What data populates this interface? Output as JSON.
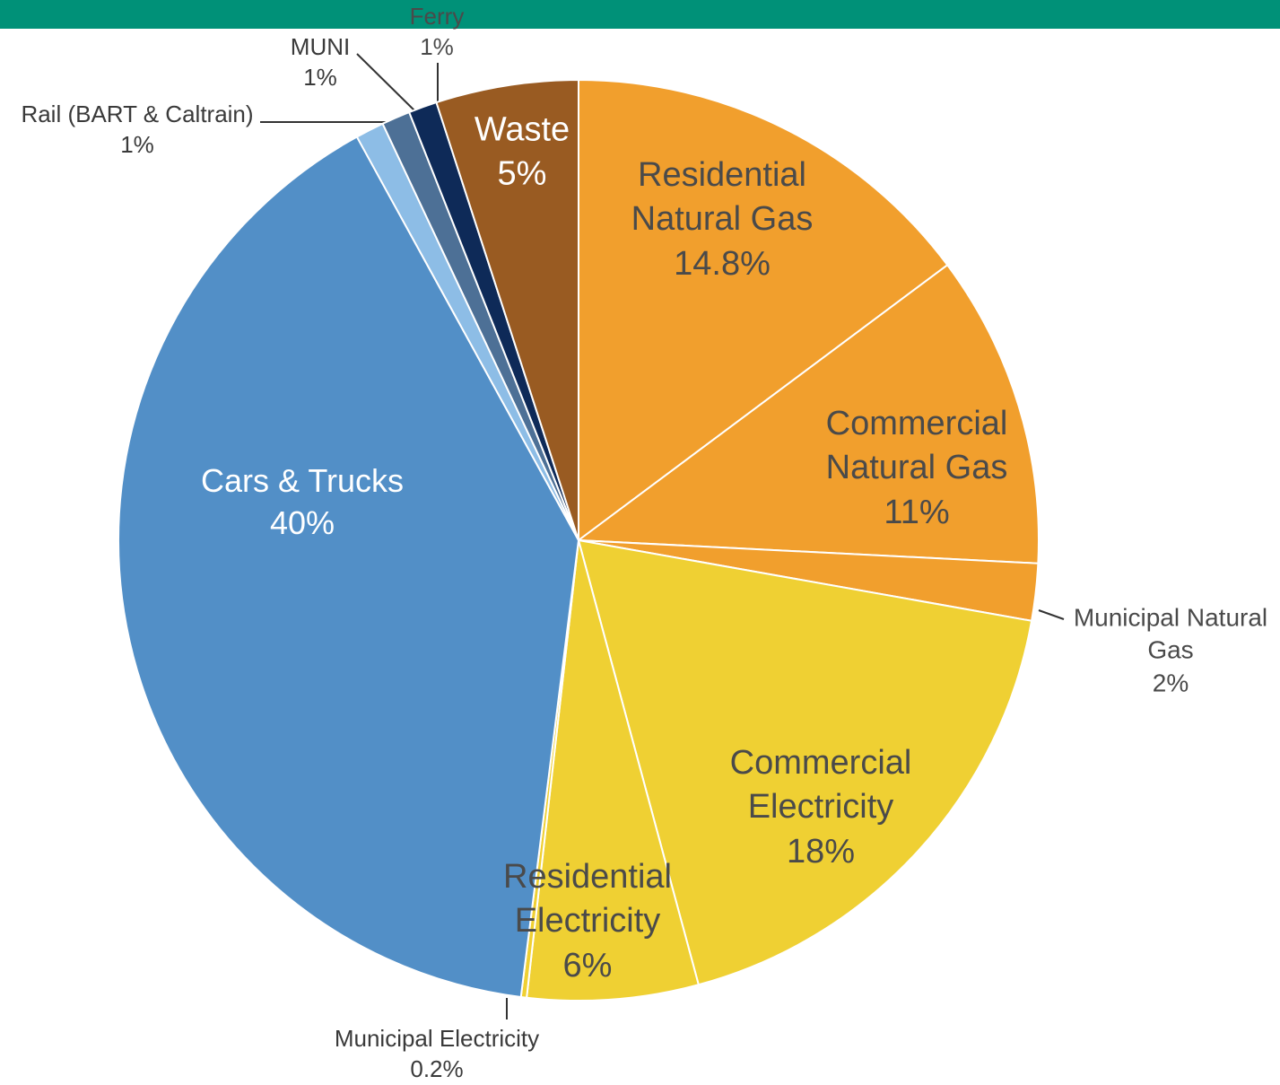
{
  "chart_data": {
    "type": "pie",
    "categories": [
      "Residential Natural Gas",
      "Commercial Natural Gas",
      "Municipal Natural Gas",
      "Commercial Electricity",
      "Residential Electricity",
      "Municipal Electricity",
      "Cars & Trucks",
      "Rail (BART & Caltrain)",
      "MUNI",
      "Ferry",
      "Waste"
    ],
    "values": [
      14.8,
      11,
      2,
      18,
      6,
      0.2,
      40,
      1,
      1,
      1,
      5
    ],
    "value_labels": [
      "14.8%",
      "11%",
      "2%",
      "18%",
      "6%",
      "0.2%",
      "40%",
      "1%",
      "1%",
      "1%",
      "5%"
    ],
    "colors": [
      "#f19f2d",
      "#f19f2d",
      "#f19f2d",
      "#efd033",
      "#efd033",
      "#efd033",
      "#528fc7",
      "#8dbde6",
      "#4d7096",
      "#0e2a58",
      "#995b22"
    ]
  }
}
